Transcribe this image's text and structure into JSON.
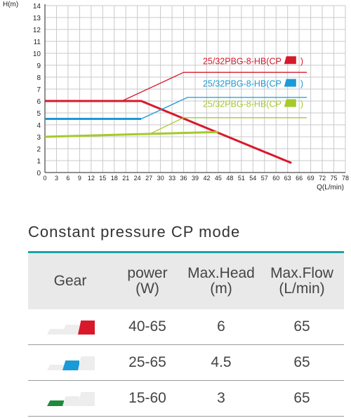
{
  "chart_data": {
    "type": "line",
    "xlabel": "Q(L/min)",
    "ylabel": "H(m)",
    "xlim": [
      0,
      78
    ],
    "ylim": [
      0,
      14
    ],
    "xticks": [
      "0",
      "3",
      "6",
      "9",
      "12",
      "15",
      "18",
      "21",
      "24",
      "27",
      "30",
      "33",
      "36",
      "39",
      "42",
      "45",
      "48",
      "51",
      "54",
      "57",
      "60",
      "63",
      "66",
      "69",
      "72",
      "75",
      "78"
    ],
    "yticks": [
      "0",
      "1",
      "2",
      "3",
      "4",
      "5",
      "6",
      "7",
      "8",
      "9",
      "10",
      "11",
      "12",
      "13",
      "14"
    ],
    "series": [
      {
        "name": "25/32PBG-8-HB(CP ",
        "suffix": ")",
        "color": "#d7192b",
        "points": [
          [
            0,
            6
          ],
          [
            25,
            6
          ],
          [
            64,
            0.8
          ]
        ],
        "guide": [
          [
            20,
            6
          ],
          [
            36,
            8.4
          ],
          [
            68,
            8.4
          ]
        ],
        "label_pos": [
          41,
          9.1
        ]
      },
      {
        "name": "25/32PBG-8-HB(CP ",
        "suffix": ")",
        "color": "#1a9ad6",
        "points": [
          [
            0,
            4.5
          ],
          [
            25,
            4.5
          ]
        ],
        "guide": [
          [
            25,
            4.5
          ],
          [
            37,
            6.3
          ],
          [
            68,
            6.3
          ]
        ],
        "label_pos": [
          41,
          7.2
        ]
      },
      {
        "name": "25/32PBG-8-HB(CP ",
        "suffix": ")",
        "color": "#a6c92b",
        "points": [
          [
            0,
            3
          ],
          [
            45,
            3.4
          ]
        ],
        "guide": [
          [
            27,
            3.2
          ],
          [
            36,
            4.6
          ],
          [
            68,
            4.6
          ]
        ],
        "label_pos": [
          41,
          5.5
        ]
      }
    ]
  },
  "section": {
    "title": "Constant pressure CP mode"
  },
  "table": {
    "headers": [
      {
        "line1": "Gear",
        "line2": ""
      },
      {
        "line1": "power",
        "line2": "(W)"
      },
      {
        "line1": "Max.Head",
        "line2": "(m)"
      },
      {
        "line1": "Max.Flow",
        "line2": "(L/min)"
      }
    ],
    "rows": [
      {
        "gear_icon": "gear-level-3-icon",
        "gear_color": "#d7192b",
        "gear_level": 3,
        "power": "40-65",
        "head": "6",
        "flow": "65"
      },
      {
        "gear_icon": "gear-level-2-icon",
        "gear_color": "#1a9ad6",
        "gear_level": 2,
        "power": "25-65",
        "head": "4.5",
        "flow": "65"
      },
      {
        "gear_icon": "gear-level-1-icon",
        "gear_color": "#1f8a3c",
        "gear_level": 1,
        "power": "15-60",
        "head": "3",
        "flow": "65"
      }
    ]
  }
}
